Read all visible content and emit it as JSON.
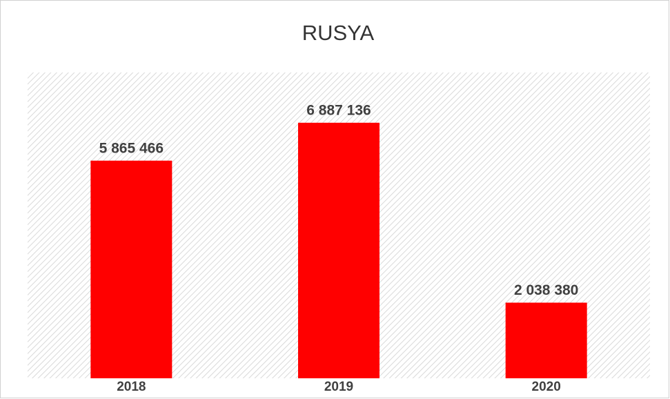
{
  "chart_data": {
    "type": "bar",
    "title": "RUSYA",
    "categories": [
      "2018",
      "2019",
      "2020"
    ],
    "values": [
      5865466,
      6887136,
      2038380
    ],
    "value_labels": [
      "5 865 466",
      "6 887 136",
      "2 038 380"
    ],
    "color": "#ff0000",
    "ylim": [
      0,
      8000000
    ]
  }
}
